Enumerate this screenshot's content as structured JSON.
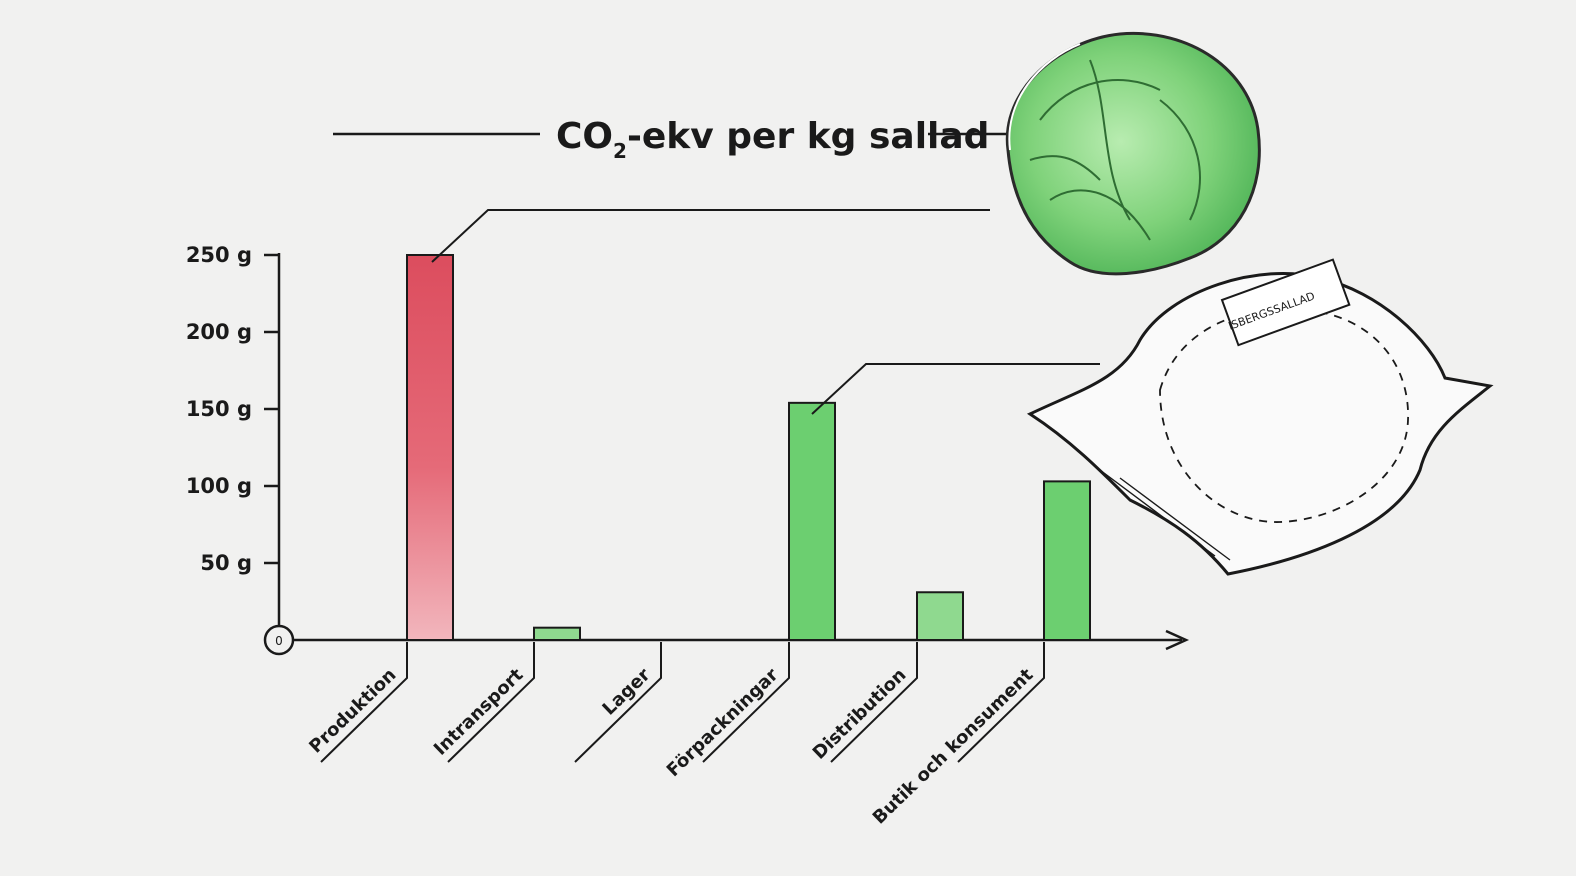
{
  "chart_data": {
    "type": "bar",
    "title": "CO",
    "title_subscript": "2",
    "title_rest": "-ekv per kg sallad",
    "categories": [
      "Produktion",
      "Intransport",
      "Lager",
      "Förpackningar",
      "Distribution",
      "Butik och konsument"
    ],
    "values": [
      250,
      8,
      0,
      154,
      31,
      103
    ],
    "bar_colors": [
      "#e05a6a",
      "#8fd98f",
      "#8fd98f",
      "#6ccf70",
      "#8fd98f",
      "#6ccf70"
    ],
    "yticks": [
      50,
      100,
      150,
      200,
      250
    ],
    "ytick_labels": [
      "50 g",
      "100 g",
      "150 g",
      "200 g",
      "250 g"
    ],
    "origin_label": "0",
    "ylim": [
      0,
      250
    ],
    "grid": false,
    "legend": "none",
    "package_label": "ISBERGSSALLAD",
    "colors": {
      "production": "#e05a6a",
      "green": "#6ccf70",
      "lettuce": "#7fd27a",
      "ink": "#1a1a1a"
    }
  }
}
